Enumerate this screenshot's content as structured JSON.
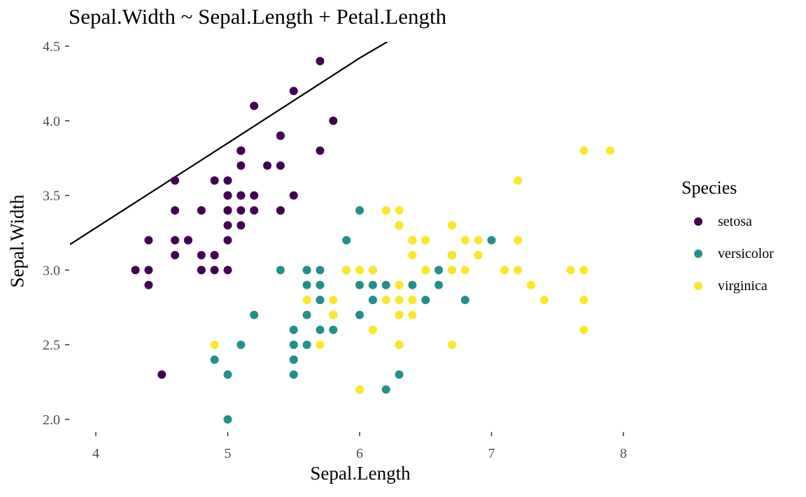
{
  "chart_data": {
    "type": "scatter",
    "title": "Sepal.Width ~ Sepal.Length + Petal.Length",
    "xlabel": "Sepal.Length",
    "ylabel": "Sepal.Width",
    "xlim": [
      3.8,
      8.2
    ],
    "ylim": [
      1.9,
      4.55
    ],
    "x_ticks": [
      4,
      5,
      6,
      7,
      8
    ],
    "y_ticks": [
      "2.0",
      "2.5",
      "3.0",
      "3.5",
      "4.0",
      "4.5"
    ],
    "grid": false,
    "legend": {
      "title": "Species",
      "placement": "right"
    },
    "fit_line": {
      "x": [
        3.8,
        5.0,
        6.0,
        6.25
      ],
      "y": [
        3.17,
        3.85,
        4.42,
        4.55
      ]
    },
    "series": [
      {
        "name": "setosa",
        "color": "#440154",
        "points": [
          [
            5.1,
            3.5
          ],
          [
            4.9,
            3.0
          ],
          [
            4.7,
            3.2
          ],
          [
            4.6,
            3.1
          ],
          [
            5.0,
            3.6
          ],
          [
            5.4,
            3.9
          ],
          [
            4.6,
            3.4
          ],
          [
            5.0,
            3.4
          ],
          [
            4.4,
            2.9
          ],
          [
            4.9,
            3.1
          ],
          [
            5.4,
            3.7
          ],
          [
            4.8,
            3.4
          ],
          [
            4.8,
            3.0
          ],
          [
            4.3,
            3.0
          ],
          [
            5.8,
            4.0
          ],
          [
            5.7,
            4.4
          ],
          [
            5.4,
            3.9
          ],
          [
            5.1,
            3.5
          ],
          [
            5.7,
            3.8
          ],
          [
            5.1,
            3.8
          ],
          [
            5.4,
            3.4
          ],
          [
            5.1,
            3.7
          ],
          [
            4.6,
            3.6
          ],
          [
            5.1,
            3.3
          ],
          [
            4.8,
            3.4
          ],
          [
            5.0,
            3.0
          ],
          [
            5.0,
            3.4
          ],
          [
            5.2,
            3.5
          ],
          [
            5.2,
            3.4
          ],
          [
            4.7,
            3.2
          ],
          [
            4.8,
            3.1
          ],
          [
            5.4,
            3.4
          ],
          [
            5.2,
            4.1
          ],
          [
            5.5,
            4.2
          ],
          [
            4.9,
            3.1
          ],
          [
            5.0,
            3.2
          ],
          [
            5.5,
            3.5
          ],
          [
            4.9,
            3.6
          ],
          [
            4.4,
            3.0
          ],
          [
            5.1,
            3.4
          ],
          [
            5.0,
            3.5
          ],
          [
            4.5,
            2.3
          ],
          [
            4.4,
            3.2
          ],
          [
            5.0,
            3.5
          ],
          [
            5.1,
            3.8
          ],
          [
            4.8,
            3.0
          ],
          [
            5.1,
            3.8
          ],
          [
            4.6,
            3.2
          ],
          [
            5.3,
            3.7
          ],
          [
            5.0,
            3.3
          ]
        ]
      },
      {
        "name": "versicolor",
        "color": "#21908c",
        "points": [
          [
            7.0,
            3.2
          ],
          [
            6.4,
            3.2
          ],
          [
            6.9,
            3.1
          ],
          [
            5.5,
            2.3
          ],
          [
            6.5,
            2.8
          ],
          [
            5.7,
            2.8
          ],
          [
            6.3,
            3.3
          ],
          [
            4.9,
            2.4
          ],
          [
            6.6,
            2.9
          ],
          [
            5.2,
            2.7
          ],
          [
            5.0,
            2.0
          ],
          [
            5.9,
            3.0
          ],
          [
            6.0,
            2.2
          ],
          [
            6.1,
            2.9
          ],
          [
            5.6,
            2.9
          ],
          [
            6.7,
            3.1
          ],
          [
            5.6,
            3.0
          ],
          [
            5.8,
            2.7
          ],
          [
            6.2,
            2.2
          ],
          [
            5.6,
            2.5
          ],
          [
            5.9,
            3.2
          ],
          [
            6.1,
            2.8
          ],
          [
            6.3,
            2.5
          ],
          [
            6.1,
            2.8
          ],
          [
            6.4,
            2.9
          ],
          [
            6.6,
            3.0
          ],
          [
            6.8,
            2.8
          ],
          [
            6.7,
            3.0
          ],
          [
            6.0,
            2.9
          ],
          [
            5.7,
            2.6
          ],
          [
            5.5,
            2.4
          ],
          [
            5.5,
            2.4
          ],
          [
            5.8,
            2.7
          ],
          [
            6.0,
            2.7
          ],
          [
            5.4,
            3.0
          ],
          [
            6.0,
            3.4
          ],
          [
            6.7,
            3.1
          ],
          [
            6.3,
            2.3
          ],
          [
            5.6,
            3.0
          ],
          [
            5.5,
            2.5
          ],
          [
            5.5,
            2.6
          ],
          [
            6.1,
            3.0
          ],
          [
            5.8,
            2.6
          ],
          [
            5.0,
            2.3
          ],
          [
            5.6,
            2.7
          ],
          [
            5.7,
            3.0
          ],
          [
            5.7,
            2.9
          ],
          [
            6.2,
            2.9
          ],
          [
            5.1,
            2.5
          ],
          [
            5.7,
            2.8
          ]
        ]
      },
      {
        "name": "virginica",
        "color": "#fde725",
        "points": [
          [
            6.3,
            3.3
          ],
          [
            5.8,
            2.7
          ],
          [
            7.1,
            3.0
          ],
          [
            6.3,
            2.9
          ],
          [
            6.5,
            3.0
          ],
          [
            7.6,
            3.0
          ],
          [
            4.9,
            2.5
          ],
          [
            7.3,
            2.9
          ],
          [
            6.7,
            2.5
          ],
          [
            7.2,
            3.6
          ],
          [
            6.5,
            3.2
          ],
          [
            6.4,
            2.7
          ],
          [
            6.8,
            3.0
          ],
          [
            5.7,
            2.5
          ],
          [
            5.8,
            2.8
          ],
          [
            6.4,
            3.2
          ],
          [
            6.5,
            3.0
          ],
          [
            7.7,
            3.8
          ],
          [
            7.7,
            2.6
          ],
          [
            6.0,
            2.2
          ],
          [
            6.9,
            3.2
          ],
          [
            5.6,
            2.8
          ],
          [
            7.7,
            2.8
          ],
          [
            6.3,
            2.7
          ],
          [
            6.7,
            3.3
          ],
          [
            7.2,
            3.2
          ],
          [
            6.2,
            2.8
          ],
          [
            6.1,
            3.0
          ],
          [
            6.4,
            2.8
          ],
          [
            7.2,
            3.0
          ],
          [
            7.4,
            2.8
          ],
          [
            7.9,
            3.8
          ],
          [
            6.4,
            2.8
          ],
          [
            6.3,
            2.8
          ],
          [
            6.1,
            2.6
          ],
          [
            7.7,
            3.0
          ],
          [
            6.3,
            3.4
          ],
          [
            6.4,
            3.1
          ],
          [
            6.0,
            3.0
          ],
          [
            6.9,
            3.1
          ],
          [
            6.7,
            3.1
          ],
          [
            6.9,
            3.1
          ],
          [
            5.8,
            2.7
          ],
          [
            6.8,
            3.2
          ],
          [
            6.7,
            3.3
          ],
          [
            6.7,
            3.0
          ],
          [
            6.3,
            2.5
          ],
          [
            6.5,
            3.0
          ],
          [
            6.2,
            3.4
          ],
          [
            5.9,
            3.0
          ]
        ]
      }
    ]
  }
}
